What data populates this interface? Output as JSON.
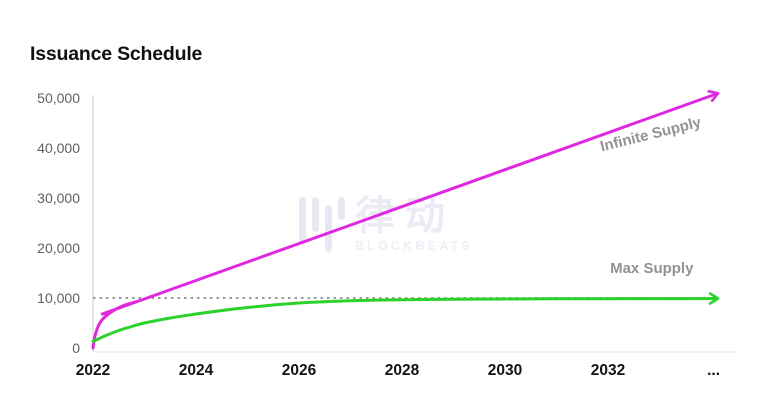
{
  "page": {
    "title": "Issuance Schedule"
  },
  "watermark": {
    "cn": "律动",
    "en": "BLOCKBEATS",
    "logo": "blockbeats-bars-icon"
  },
  "colors": {
    "infinite_supply_line": "#e128e1",
    "max_supply_line": "#2bd22b",
    "dotted_cap_line": "#9a9a9a",
    "axis_line": "#dedede",
    "y_tick_label": "#606060",
    "x_tick_label": "#141414",
    "annotation_text": "#929292",
    "title_text": "#111111",
    "watermark_tint": "#ecebf5",
    "background": "#ffffff"
  },
  "chart_data": {
    "type": "line",
    "title": "Issuance Schedule",
    "xlabel": "",
    "ylabel": "",
    "xlim": [
      2022,
      2034.3
    ],
    "ylim": [
      0,
      52000
    ],
    "grid": false,
    "legend_position": "inline-annotations",
    "x_ticks": [
      {
        "year": 2022,
        "label": "2022"
      },
      {
        "year": 2024,
        "label": "2024"
      },
      {
        "year": 2026,
        "label": "2026"
      },
      {
        "year": 2028,
        "label": "2028"
      },
      {
        "year": 2030,
        "label": "2030"
      },
      {
        "year": 2032,
        "label": "2032"
      },
      {
        "year": 2034.05,
        "label": "..."
      }
    ],
    "y_ticks": [
      {
        "value": 0,
        "label": "0"
      },
      {
        "value": 10000,
        "label": "10,000"
      },
      {
        "value": 20000,
        "label": "20,000"
      },
      {
        "value": 30000,
        "label": "30,000"
      },
      {
        "value": 40000,
        "label": "40,000"
      },
      {
        "value": 50000,
        "label": "50,000"
      }
    ],
    "reference_line": {
      "value": 10000,
      "style": "dotted",
      "color": "#9a9a9a"
    },
    "series": [
      {
        "name": "Infinite Supply",
        "color": "#e128e1",
        "arrow_end": true,
        "x": [
          2022,
          2022.03,
          2022.07,
          2022.12,
          2022.2,
          2022.3,
          2022.45,
          2022.62,
          2022.85,
          2023.05,
          2034.1
        ],
        "y": [
          0,
          2000,
          3500,
          4800,
          5900,
          6800,
          7800,
          8600,
          9300,
          10000,
          50800
        ]
      },
      {
        "name": "Max Supply",
        "color": "#2bd22b",
        "arrow_end": true,
        "x": [
          2022,
          2022.25,
          2022.5,
          2022.75,
          2023,
          2023.5,
          2024,
          2024.5,
          2025,
          2025.5,
          2026,
          2026.5,
          2027,
          2027.5,
          2028,
          2029,
          2030,
          2031,
          2032,
          2033,
          2034.1
        ],
        "y": [
          1300,
          2500,
          3500,
          4300,
          5000,
          6000,
          6800,
          7500,
          8100,
          8600,
          9000,
          9250,
          9450,
          9570,
          9650,
          9750,
          9800,
          9840,
          9860,
          9880,
          9900
        ]
      }
    ],
    "annotations": [
      {
        "label": "Infinite Supply",
        "year": 2032.85,
        "value": 41800,
        "rotate": -14,
        "color": "#929292"
      },
      {
        "label": "Max Supply",
        "year": 2032.85,
        "value": 15000,
        "rotate": 0,
        "color": "#929292"
      }
    ]
  }
}
